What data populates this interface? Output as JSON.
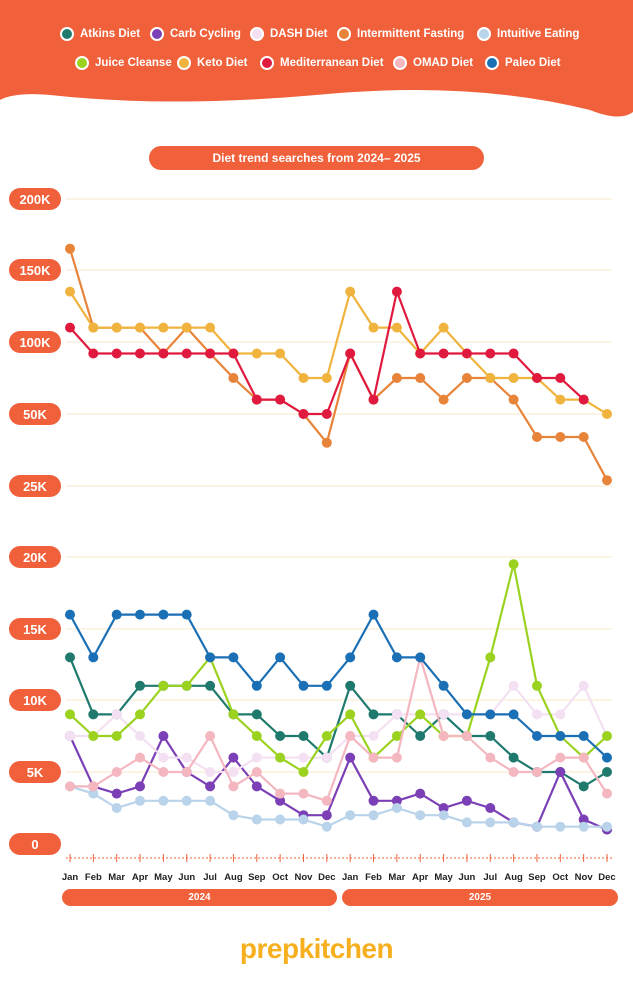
{
  "legend": [
    {
      "label": "Atkins Diet",
      "color": "#1f7a6d"
    },
    {
      "label": "Carb Cycling",
      "color": "#7b3fb6"
    },
    {
      "label": "DASH Diet",
      "color": "#f3e0f2"
    },
    {
      "label": "Intermittent Fasting",
      "color": "#e8833a"
    },
    {
      "label": "Intuitive Eating",
      "color": "#b9d3ea"
    },
    {
      "label": "Juice Cleanse",
      "color": "#9ad21f"
    },
    {
      "label": "Keto Diet",
      "color": "#f0b33d"
    },
    {
      "label": "Mediterranean Diet",
      "color": "#e0193f"
    },
    {
      "label": "OMAD Diet",
      "color": "#f4b6bf"
    },
    {
      "label": "Paleo Diet",
      "color": "#1a6fb5"
    }
  ],
  "brand": "prepkitchen",
  "chart_data": {
    "type": "line",
    "title": "Diet trend searches from 2024– 2025",
    "categories": [
      "Jan",
      "Feb",
      "Mar",
      "Apr",
      "May",
      "Jun",
      "Jul",
      "Aug",
      "Sep",
      "Oct",
      "Nov",
      "Dec",
      "Jan",
      "Feb",
      "Mar",
      "Apr",
      "May",
      "Jun",
      "Jul",
      "Aug",
      "Sep",
      "Oct",
      "Nov",
      "Dec"
    ],
    "groups": [
      "2024",
      "2025"
    ],
    "y_tick_labels": [
      "200K",
      "150K",
      "100K",
      "50K",
      "25K",
      "20K",
      "15K",
      "10K",
      "5K",
      "0"
    ],
    "y_tick_values": [
      200000,
      150000,
      100000,
      50000,
      25000,
      20000,
      15000,
      10000,
      5000,
      0
    ],
    "y_scale": "piecewise",
    "ylim": [
      0,
      200000
    ],
    "grid": true,
    "legend_position": "top",
    "series": [
      {
        "name": "Atkins Diet",
        "color": "#1f7a6d",
        "values": [
          13000,
          9000,
          9000,
          11000,
          11000,
          11000,
          11000,
          9000,
          9000,
          7500,
          7500,
          6000,
          11000,
          9000,
          9000,
          7500,
          9000,
          7500,
          7500,
          6000,
          5000,
          5000,
          4000,
          5000
        ]
      },
      {
        "name": "Carb Cycling",
        "color": "#7b3fb6",
        "values": [
          7500,
          4000,
          3500,
          4000,
          7500,
          5000,
          4000,
          6000,
          4000,
          3000,
          2000,
          2000,
          6000,
          3000,
          3000,
          3500,
          2500,
          3000,
          2500,
          1500,
          1200,
          5000,
          1700,
          1000
        ]
      },
      {
        "name": "DASH Diet",
        "color": "#f3e0f2",
        "values": [
          7500,
          7500,
          9000,
          7500,
          6000,
          6000,
          5000,
          5000,
          6000,
          6000,
          6000,
          6000,
          7500,
          7500,
          9000,
          9000,
          9000,
          9000,
          9000,
          11000,
          9000,
          9000,
          11000,
          7500
        ]
      },
      {
        "name": "Intermittent Fasting",
        "color": "#e8833a",
        "values": [
          165000,
          110000,
          110000,
          110000,
          92000,
          110000,
          92000,
          75000,
          60000,
          60000,
          50000,
          40000,
          92000,
          60000,
          75000,
          75000,
          60000,
          75000,
          75000,
          60000,
          42000,
          42000,
          42000,
          27000
        ]
      },
      {
        "name": "Intuitive Eating",
        "color": "#b9d3ea",
        "values": [
          4000,
          3500,
          2500,
          3000,
          3000,
          3000,
          3000,
          2000,
          1700,
          1700,
          1700,
          1200,
          2000,
          2000,
          2500,
          2000,
          2000,
          1500,
          1500,
          1500,
          1200,
          1200,
          1200,
          1200
        ]
      },
      {
        "name": "Juice Cleanse",
        "color": "#9ad21f",
        "values": [
          9000,
          7500,
          7500,
          9000,
          11000,
          11000,
          13000,
          9000,
          7500,
          6000,
          5000,
          7500,
          9000,
          6000,
          7500,
          9000,
          7500,
          7500,
          13000,
          19500,
          11000,
          7500,
          6000,
          7500
        ]
      },
      {
        "name": "Keto Diet",
        "color": "#f0b33d",
        "values": [
          135000,
          110000,
          110000,
          110000,
          110000,
          110000,
          110000,
          92000,
          92000,
          92000,
          75000,
          75000,
          135000,
          110000,
          110000,
          92000,
          110000,
          92000,
          75000,
          75000,
          75000,
          60000,
          60000,
          50000
        ]
      },
      {
        "name": "Mediterranean Diet",
        "color": "#e0193f",
        "values": [
          110000,
          92000,
          92000,
          92000,
          92000,
          92000,
          92000,
          92000,
          60000,
          60000,
          50000,
          50000,
          92000,
          60000,
          135000,
          92000,
          92000,
          92000,
          92000,
          92000,
          75000,
          75000,
          60000,
          null
        ]
      },
      {
        "name": "OMAD Diet",
        "color": "#f4b6bf",
        "values": [
          4000,
          4000,
          5000,
          6000,
          5000,
          5000,
          7500,
          4000,
          5000,
          3500,
          3500,
          3000,
          7500,
          6000,
          6000,
          13000,
          7500,
          7500,
          6000,
          5000,
          5000,
          6000,
          6000,
          3500
        ]
      },
      {
        "name": "Paleo Diet",
        "color": "#1a6fb5",
        "values": [
          16000,
          13000,
          16000,
          16000,
          16000,
          16000,
          13000,
          13000,
          11000,
          13000,
          11000,
          11000,
          13000,
          16000,
          13000,
          13000,
          11000,
          9000,
          9000,
          9000,
          7500,
          7500,
          7500,
          6000
        ]
      }
    ]
  }
}
